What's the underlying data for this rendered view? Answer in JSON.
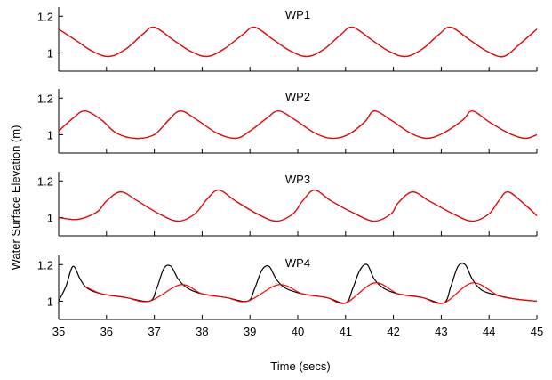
{
  "figure": {
    "ylabel": "Water Surface Elevation (m)",
    "xlabel": "Time (secs)"
  },
  "colors": {
    "measured": "#000000",
    "simulated": "#ff0000",
    "axis": "#000000"
  },
  "chart_data": [
    {
      "type": "line",
      "title": "WP1",
      "xlim": [
        35,
        45
      ],
      "ylim": [
        0.9,
        1.25
      ],
      "yticks": [
        1,
        1.2
      ],
      "ytick_labels": [
        "1",
        "1.2"
      ],
      "xticks": [
        35,
        36,
        37,
        38,
        39,
        40,
        41,
        42,
        43,
        44,
        45
      ],
      "xtick_labels": [],
      "grid": false,
      "series": [
        {
          "x": [
            35,
            35.35,
            35.7,
            36.05,
            36.4,
            36.75,
            37.0,
            37.4,
            37.75,
            38.1,
            38.45,
            38.85,
            39.1,
            39.5,
            39.85,
            40.2,
            40.55,
            40.9,
            41.15,
            41.55,
            41.9,
            42.25,
            42.6,
            42.95,
            43.2,
            43.6,
            43.95,
            44.3,
            44.65,
            45
          ],
          "y": [
            1.13,
            1.07,
            1.01,
            0.98,
            1.02,
            1.1,
            1.14,
            1.07,
            1.01,
            0.98,
            1.02,
            1.1,
            1.14,
            1.07,
            1.01,
            0.98,
            1.02,
            1.1,
            1.14,
            1.07,
            1.01,
            0.98,
            1.02,
            1.1,
            1.14,
            1.07,
            1.01,
            0.98,
            1.05,
            1.13
          ]
        },
        {
          "x": [
            35,
            35.35,
            35.7,
            36.05,
            36.4,
            36.75,
            37.0,
            37.4,
            37.75,
            38.1,
            38.45,
            38.85,
            39.1,
            39.5,
            39.85,
            40.2,
            40.55,
            40.9,
            41.15,
            41.55,
            41.9,
            42.25,
            42.6,
            42.95,
            43.2,
            43.6,
            43.95,
            44.3,
            44.65,
            45
          ],
          "y": [
            1.13,
            1.07,
            1.01,
            0.98,
            1.02,
            1.1,
            1.14,
            1.07,
            1.01,
            0.98,
            1.02,
            1.1,
            1.14,
            1.07,
            1.01,
            0.98,
            1.02,
            1.1,
            1.14,
            1.07,
            1.01,
            0.98,
            1.02,
            1.1,
            1.14,
            1.07,
            1.01,
            0.98,
            1.05,
            1.13
          ]
        }
      ]
    },
    {
      "type": "line",
      "title": "WP2",
      "xlim": [
        35,
        45
      ],
      "ylim": [
        0.9,
        1.25
      ],
      "yticks": [
        1,
        1.2
      ],
      "ytick_labels": [
        "1",
        "1.2"
      ],
      "xticks": [
        35,
        36,
        37,
        38,
        39,
        40,
        41,
        42,
        43,
        44,
        45
      ],
      "xtick_labels": [],
      "grid": false,
      "series": [
        {
          "x": [
            35,
            35.3,
            35.55,
            35.9,
            36.2,
            36.6,
            37.0,
            37.3,
            37.55,
            37.9,
            38.3,
            38.7,
            39.0,
            39.35,
            39.6,
            39.95,
            40.35,
            40.7,
            41.05,
            41.4,
            41.6,
            41.95,
            42.35,
            42.7,
            43.05,
            43.45,
            43.65,
            44.0,
            44.4,
            44.75,
            45
          ],
          "y": [
            1.02,
            1.09,
            1.13,
            1.08,
            1.01,
            0.98,
            1.0,
            1.08,
            1.13,
            1.08,
            1.01,
            0.98,
            1.02,
            1.09,
            1.13,
            1.08,
            1.01,
            0.98,
            1.0,
            1.07,
            1.13,
            1.08,
            1.01,
            0.98,
            1.01,
            1.08,
            1.13,
            1.07,
            1.01,
            0.98,
            1.0
          ]
        },
        {
          "x": [
            35,
            35.3,
            35.55,
            35.9,
            36.2,
            36.6,
            37.0,
            37.3,
            37.55,
            37.9,
            38.3,
            38.7,
            39.0,
            39.35,
            39.6,
            39.95,
            40.35,
            40.7,
            41.05,
            41.4,
            41.6,
            41.95,
            42.35,
            42.7,
            43.05,
            43.45,
            43.65,
            44.0,
            44.4,
            44.75,
            45
          ],
          "y": [
            1.02,
            1.09,
            1.13,
            1.08,
            1.01,
            0.98,
            1.0,
            1.08,
            1.13,
            1.08,
            1.01,
            0.98,
            1.02,
            1.09,
            1.13,
            1.08,
            1.01,
            0.98,
            1.0,
            1.07,
            1.13,
            1.08,
            1.01,
            0.98,
            1.01,
            1.08,
            1.13,
            1.07,
            1.01,
            0.98,
            1.0
          ]
        }
      ]
    },
    {
      "type": "line",
      "title": "WP3",
      "xlim": [
        35,
        45
      ],
      "ylim": [
        0.9,
        1.25
      ],
      "yticks": [
        1,
        1.2
      ],
      "ytick_labels": [
        "1",
        "1.2"
      ],
      "xticks": [
        35,
        36,
        37,
        38,
        39,
        40,
        41,
        42,
        43,
        44,
        45
      ],
      "xtick_labels": [],
      "grid": false,
      "series": [
        {
          "x": [
            35,
            35.4,
            35.8,
            36.0,
            36.3,
            36.65,
            37.1,
            37.5,
            37.85,
            38.1,
            38.35,
            38.7,
            39.15,
            39.55,
            39.9,
            40.1,
            40.35,
            40.7,
            41.2,
            41.6,
            41.95,
            42.1,
            42.4,
            42.75,
            43.25,
            43.65,
            44.0,
            44.2,
            44.4,
            44.75,
            45
          ],
          "y": [
            1.0,
            0.99,
            1.03,
            1.09,
            1.14,
            1.09,
            1.02,
            0.98,
            1.02,
            1.1,
            1.15,
            1.09,
            1.02,
            0.98,
            1.02,
            1.09,
            1.15,
            1.09,
            1.02,
            0.98,
            1.02,
            1.08,
            1.14,
            1.09,
            1.02,
            0.98,
            1.02,
            1.09,
            1.14,
            1.07,
            1.01
          ]
        },
        {
          "x": [
            35,
            35.4,
            35.8,
            36.0,
            36.3,
            36.65,
            37.1,
            37.5,
            37.85,
            38.1,
            38.35,
            38.7,
            39.15,
            39.55,
            39.9,
            40.1,
            40.35,
            40.7,
            41.2,
            41.6,
            41.95,
            42.1,
            42.4,
            42.75,
            43.25,
            43.65,
            44.0,
            44.2,
            44.4,
            44.75,
            45
          ],
          "y": [
            1.0,
            0.99,
            1.03,
            1.09,
            1.14,
            1.09,
            1.02,
            0.98,
            1.02,
            1.1,
            1.15,
            1.09,
            1.02,
            0.98,
            1.02,
            1.09,
            1.15,
            1.09,
            1.02,
            0.98,
            1.02,
            1.08,
            1.14,
            1.09,
            1.02,
            0.98,
            1.02,
            1.09,
            1.14,
            1.07,
            1.01
          ]
        }
      ]
    },
    {
      "type": "line",
      "title": "WP4",
      "xlim": [
        35,
        45
      ],
      "ylim": [
        0.9,
        1.25
      ],
      "yticks": [
        1,
        1.2
      ],
      "ytick_labels": [
        "1",
        "1.2"
      ],
      "xticks": [
        35,
        36,
        37,
        38,
        39,
        40,
        41,
        42,
        43,
        44,
        45
      ],
      "xtick_labels": [],
      "grid": false,
      "series": [
        {
          "x": [
            35,
            35.15,
            35.3,
            35.45,
            35.6,
            35.9,
            36.4,
            36.9,
            37.05,
            37.2,
            37.35,
            37.5,
            37.7,
            38.0,
            38.5,
            38.95,
            39.1,
            39.25,
            39.4,
            39.55,
            39.75,
            40.1,
            40.6,
            41.0,
            41.15,
            41.3,
            41.45,
            41.6,
            41.8,
            42.1,
            42.6,
            43.05,
            43.2,
            43.35,
            43.5,
            43.65,
            43.85,
            44.2,
            44.6,
            45
          ],
          "y": [
            1.0,
            1.08,
            1.19,
            1.12,
            1.07,
            1.04,
            1.02,
            1.0,
            1.07,
            1.18,
            1.19,
            1.12,
            1.07,
            1.04,
            1.02,
            1.0,
            1.07,
            1.17,
            1.19,
            1.12,
            1.07,
            1.04,
            1.02,
            0.99,
            1.07,
            1.17,
            1.2,
            1.12,
            1.07,
            1.04,
            1.02,
            0.99,
            1.08,
            1.19,
            1.2,
            1.12,
            1.06,
            1.03,
            1.01,
            1.0
          ]
        },
        {
          "x": [
            35.55,
            35.9,
            36.4,
            36.9,
            37.55,
            38.0,
            38.5,
            38.95,
            39.6,
            40.1,
            40.6,
            41.0,
            41.6,
            42.1,
            42.6,
            43.05,
            43.65,
            44.2,
            44.6,
            45
          ],
          "y": [
            1.08,
            1.04,
            1.02,
            1.0,
            1.09,
            1.04,
            1.02,
            1.0,
            1.09,
            1.04,
            1.02,
            0.99,
            1.1,
            1.04,
            1.02,
            0.99,
            1.1,
            1.03,
            1.01,
            1.0
          ]
        }
      ]
    }
  ]
}
